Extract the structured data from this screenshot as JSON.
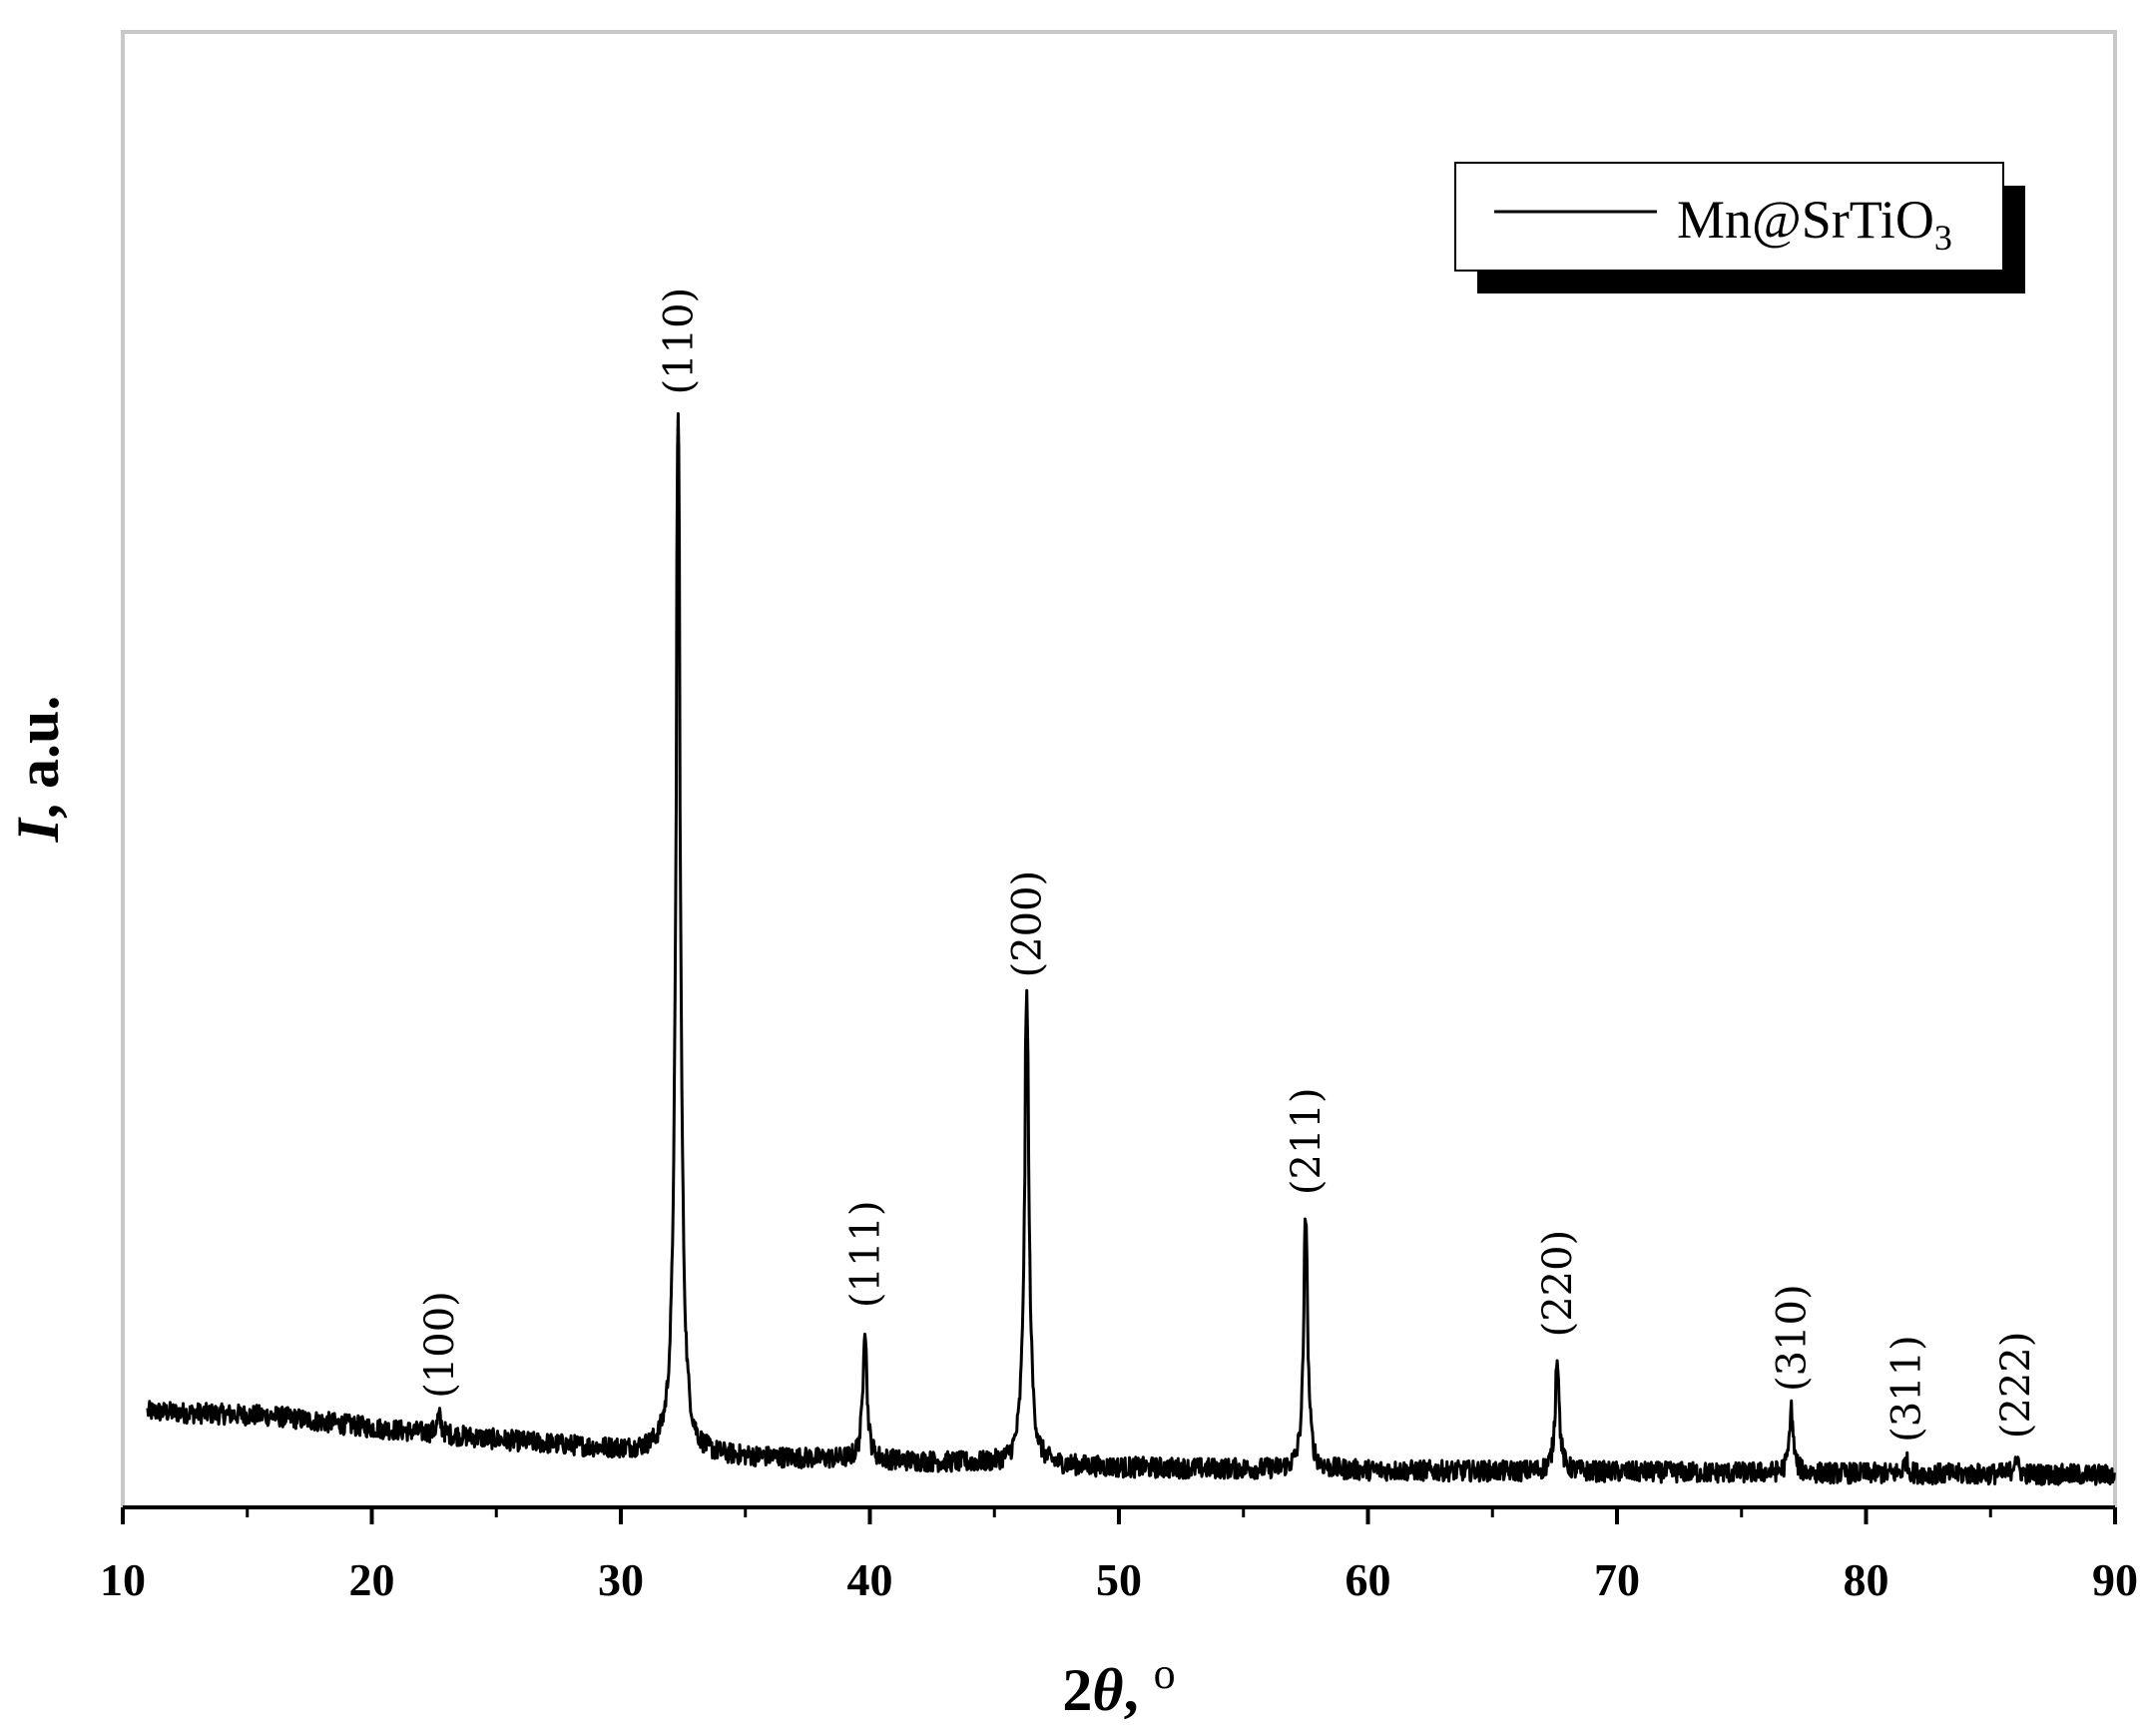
{
  "chart_data": {
    "type": "line",
    "title": "",
    "xlabel": {
      "prefix": "2",
      "symbol": "θ",
      "suffix": ", ",
      "unit": "o"
    },
    "ylabel": {
      "italic": "I",
      "rest": ", a.u."
    },
    "xlim": [
      10,
      90
    ],
    "ylim": [
      0,
      100
    ],
    "x_ticks": [
      10,
      20,
      30,
      40,
      50,
      60,
      70,
      80,
      90
    ],
    "x_tick_labels": [
      "10",
      "20",
      "30",
      "40",
      "50",
      "60",
      "70",
      "80",
      "90"
    ],
    "x_minor_ticks": [
      15,
      25,
      35,
      45,
      55,
      65,
      75,
      85
    ],
    "y_ticks_shown": false,
    "grid": false,
    "legend": {
      "position": "top-right",
      "entries": [
        {
          "base": "Mn@SrTiO",
          "sub": "3"
        }
      ]
    },
    "series": [
      {
        "name": "Mn@SrTiO3",
        "color": "#000000",
        "baseline": [
          [
            11,
            6.5
          ],
          [
            16,
            6.2
          ],
          [
            20,
            5.4
          ],
          [
            25,
            4.6
          ],
          [
            30,
            3.9
          ],
          [
            33,
            3.5
          ],
          [
            40,
            3.2
          ],
          [
            50,
            2.7
          ],
          [
            60,
            2.5
          ],
          [
            70,
            2.4
          ],
          [
            80,
            2.3
          ],
          [
            90,
            2.2
          ]
        ],
        "noise_amplitude": 0.7,
        "peaks": [
          {
            "x": 22.7,
            "height": 1.2,
            "label": "(100)"
          },
          {
            "x": 32.3,
            "height": 70.6,
            "label": "(110)"
          },
          {
            "x": 39.8,
            "height": 9.1,
            "label": "(111)"
          },
          {
            "x": 46.3,
            "height": 31.8,
            "label": "(200)"
          },
          {
            "x": 57.5,
            "height": 17.4,
            "label": "(211)"
          },
          {
            "x": 67.6,
            "height": 7.9,
            "label": "(220)"
          },
          {
            "x": 77.0,
            "height": 4.3,
            "label": "(310)"
          },
          {
            "x": 81.6,
            "height": 0.9,
            "label": "(311)"
          },
          {
            "x": 86.0,
            "height": 1.2,
            "label": "(222)"
          }
        ]
      }
    ]
  }
}
